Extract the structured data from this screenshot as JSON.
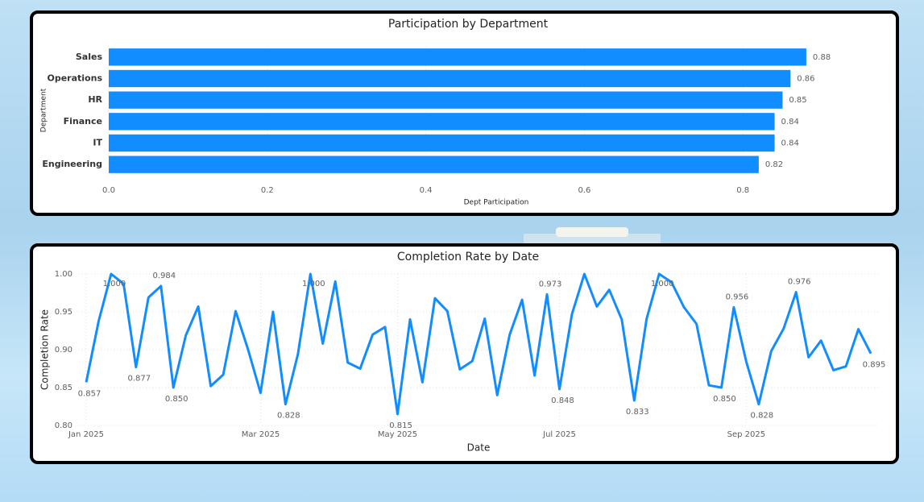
{
  "chart_data": [
    {
      "type": "bar",
      "horizontal": true,
      "title": "Participation by Department",
      "x_label": "Dept Participation",
      "y_label": "Department",
      "categories": [
        "Sales",
        "Operations",
        "HR",
        "Finance",
        "IT",
        "Engineering"
      ],
      "values": [
        0.88,
        0.86,
        0.85,
        0.84,
        0.84,
        0.82
      ],
      "color": "#118dff",
      "xlim": [
        0,
        0.97
      ],
      "xticks": [
        {
          "value": 0,
          "label": "0.0"
        },
        0.2,
        0.4,
        0.6,
        0.8
      ],
      "grid": true
    },
    {
      "type": "line",
      "title": "Completion Rate by Date",
      "x_label": "Date",
      "y_label": "Completion Rate",
      "categories": [
        "Jan 2025",
        null,
        null,
        null,
        null,
        null,
        null,
        null,
        null,
        null,
        null,
        null,
        null,
        null,
        "Mar 2025",
        null,
        null,
        null,
        null,
        null,
        null,
        null,
        null,
        null,
        null,
        "May 2025",
        null,
        null,
        null,
        null,
        null,
        null,
        null,
        null,
        null,
        null,
        null,
        null,
        "Jul 2025",
        null,
        null,
        null,
        null,
        null,
        null,
        null,
        null,
        null,
        null,
        null,
        null,
        null,
        null,
        "Sep 2025",
        null,
        null,
        null,
        null,
        null,
        null,
        null,
        null,
        null,
        null
      ],
      "values": [
        0.857,
        0.938,
        1,
        0.987,
        0.877,
        0.969,
        0.984,
        0.85,
        0.919,
        0.957,
        0.852,
        0.867,
        0.951,
        0.9,
        0.843,
        0.95,
        0.828,
        0.894,
        1,
        0.908,
        0.99,
        0.883,
        0.875,
        0.92,
        0.93,
        0.815,
        0.94,
        0.857,
        0.968,
        0.951,
        0.874,
        0.885,
        0.941,
        0.84,
        0.92,
        0.966,
        0.866,
        0.973,
        0.848,
        0.947,
        1,
        0.957,
        0.979,
        0.94,
        0.833,
        0.941,
        1,
        0.989,
        0.956,
        0.934,
        0.853,
        0.85,
        0.956,
        0.884,
        0.828,
        0.898,
        0.928,
        0.976,
        0.89,
        0.912,
        0.873,
        0.878,
        0.927,
        0.895
      ],
      "value_labels": [
        "0.857",
        null,
        "1.000",
        null,
        "0.877",
        null,
        "0.984",
        "0.850",
        null,
        null,
        null,
        null,
        null,
        null,
        null,
        null,
        "0.828",
        null,
        "1.000",
        null,
        null,
        null,
        null,
        null,
        null,
        "0.815",
        null,
        null,
        null,
        null,
        null,
        null,
        null,
        null,
        null,
        null,
        null,
        "0.973",
        "0.848",
        null,
        null,
        null,
        null,
        null,
        "0.833",
        null,
        "1.000",
        null,
        null,
        null,
        null,
        "0.850",
        "0.956",
        null,
        "0.828",
        null,
        null,
        "0.976",
        null,
        null,
        null,
        null,
        null,
        "0.895"
      ],
      "color": "#118dff",
      "ylim": [
        0.8,
        1
      ],
      "yticks": [
        {
          "value": 0.8,
          "label": "0.80"
        },
        0.85,
        {
          "value": 0.9,
          "label": "0.90"
        },
        0.95,
        {
          "value": 1,
          "label": "1.00"
        }
      ],
      "grid": true
    }
  ]
}
